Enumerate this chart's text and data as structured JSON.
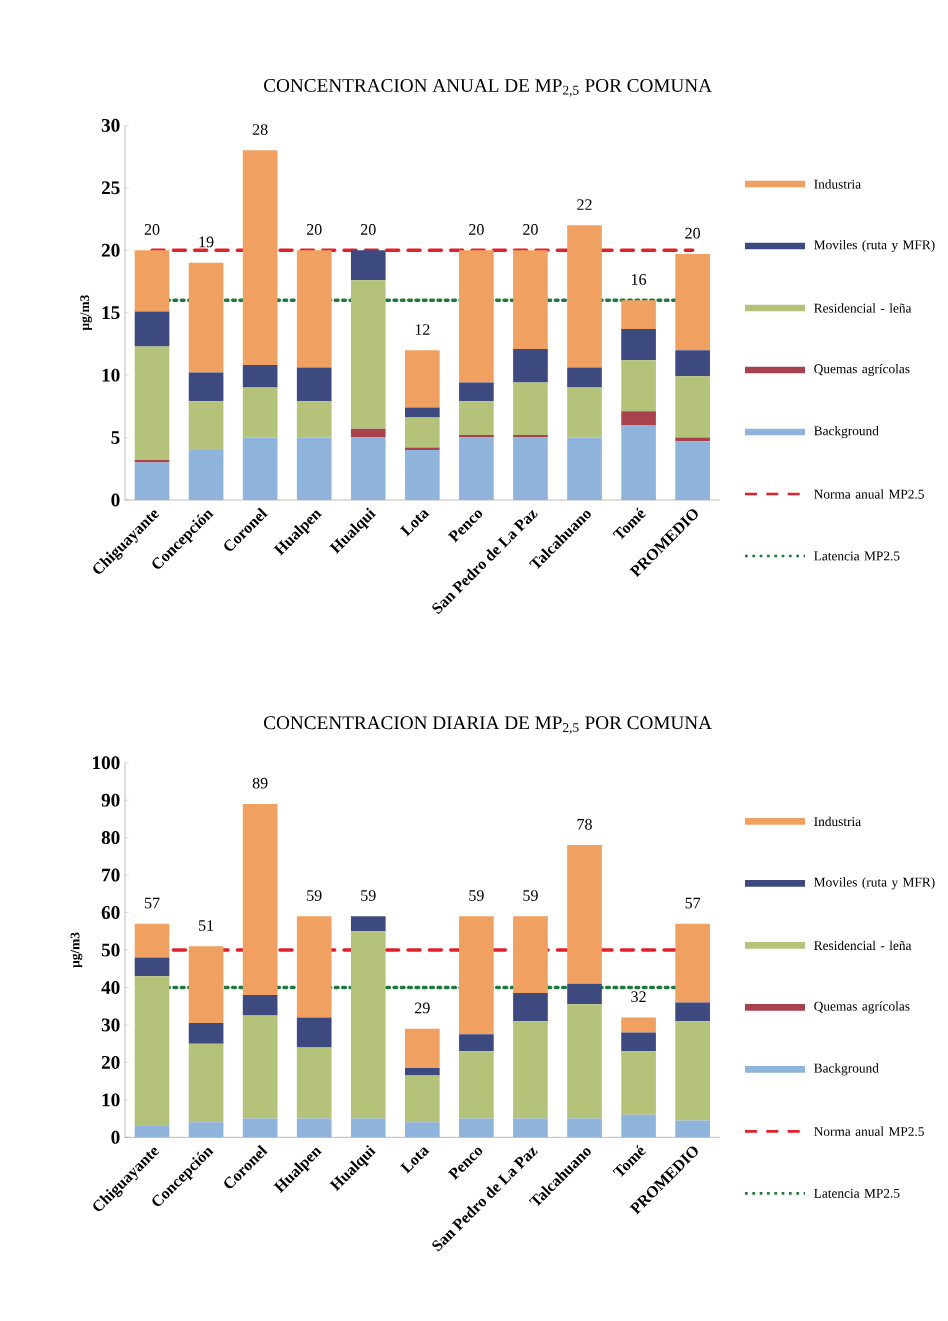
{
  "chart_data": [
    {
      "type": "bar",
      "title": "CONCENTRACION ANUAL DE MP$_{2,5}$ POR COMUNA",
      "ylabel": "µg/m3",
      "stacked": true,
      "legend": "right",
      "categories": [
        "Chiguayante",
        "Concepción",
        "Coronel",
        "Hualpen",
        "Hualqui",
        "Lota",
        "Penco",
        "San Pedro de La Paz",
        "Talcahuano",
        "Tomé",
        "PROMEDIO"
      ],
      "ylim": [
        0,
        30
      ],
      "yticks": [
        0,
        5,
        10,
        15,
        20,
        25,
        30
      ],
      "series": [
        {
          "name": "Background",
          "color": "#8fb4dc",
          "values": [
            3,
            4,
            5,
            5,
            5,
            4,
            5,
            5,
            5,
            6,
            4.7
          ]
        },
        {
          "name": "Quemas agrícolas",
          "color": "#a8424f",
          "values": [
            0.2,
            0,
            0,
            0,
            0.7,
            0.2,
            0.2,
            0.2,
            0,
            1.1,
            0.3
          ]
        },
        {
          "name": "Residencial - leña",
          "color": "#b5c27a",
          "values": [
            9.1,
            3.9,
            4,
            2.9,
            11.9,
            2.4,
            2.7,
            4.2,
            4,
            4.1,
            4.9
          ]
        },
        {
          "name": "Moviles (ruta y MFR)",
          "color": "#3d4a7f",
          "values": [
            2.8,
            2.3,
            1.8,
            2.7,
            2.4,
            0.8,
            1.5,
            2.7,
            1.6,
            2.5,
            2.1
          ]
        },
        {
          "name": "Industria",
          "color": "#f0a060",
          "values": [
            4.9,
            8.8,
            17.2,
            9.4,
            0,
            4.6,
            10.6,
            7.9,
            11.4,
            2.3,
            7.7
          ]
        }
      ],
      "totals": [
        "20",
        "19",
        "28",
        "20",
        "20",
        "12",
        "20",
        "20",
        "22",
        "16",
        "20"
      ],
      "ref_lines": [
        {
          "axis": "y",
          "value": 20,
          "label": "Norma anual MP2.5",
          "color": "#e0202a",
          "line_style": "dashed"
        },
        {
          "axis": "y",
          "value": 16,
          "label": "Latencia MP2.5",
          "color": "#1e7a3a",
          "line_style": "dotted"
        }
      ]
    },
    {
      "type": "bar",
      "title": "CONCENTRACION DIARIA DE MP$_{2,5}$ POR COMUNA",
      "ylabel": "µg/m3",
      "stacked": true,
      "legend": "right",
      "categories": [
        "Chiguayante",
        "Concepción",
        "Coronel",
        "Hualpen",
        "Hualqui",
        "Lota",
        "Penco",
        "San Pedro de La Paz",
        "Talcahuano",
        "Tomé",
        "PROMEDIO"
      ],
      "ylim": [
        0,
        100
      ],
      "yticks": [
        0,
        10,
        20,
        30,
        40,
        50,
        60,
        70,
        80,
        90,
        100
      ],
      "series": [
        {
          "name": "Background",
          "color": "#8fb4dc",
          "values": [
            3,
            4,
            5,
            5,
            5,
            4,
            5,
            5,
            5,
            6,
            4.5
          ]
        },
        {
          "name": "Quemas agrícolas",
          "color": "#a8424f",
          "values": [
            0,
            0,
            0,
            0,
            0,
            0,
            0,
            0,
            0,
            0,
            0
          ]
        },
        {
          "name": "Residencial - leña",
          "color": "#b5c27a",
          "values": [
            40,
            21,
            27.5,
            19,
            50,
            12.5,
            18,
            26,
            30.5,
            17,
            26.5
          ]
        },
        {
          "name": "Moviles (ruta y MFR)",
          "color": "#3d4a7f",
          "values": [
            5,
            5.5,
            5.5,
            8,
            4,
            2,
            4.5,
            7.5,
            5.5,
            5,
            5
          ]
        },
        {
          "name": "Industria",
          "color": "#f0a060",
          "values": [
            9,
            20.5,
            51,
            27,
            0,
            10.5,
            31.5,
            20.5,
            37,
            4,
            21
          ]
        }
      ],
      "totals": [
        "57",
        "51",
        "89",
        "59",
        "59",
        "29",
        "59",
        "59",
        "78",
        "32",
        "57"
      ],
      "ref_lines": [
        {
          "axis": "y",
          "value": 50,
          "label": "Norma anual MP2.5",
          "color": "#e0202a",
          "line_style": "dashed"
        },
        {
          "axis": "y",
          "value": 40,
          "label": "Latencia MP2.5",
          "color": "#1e7a3a",
          "line_style": "dotted"
        }
      ]
    }
  ]
}
